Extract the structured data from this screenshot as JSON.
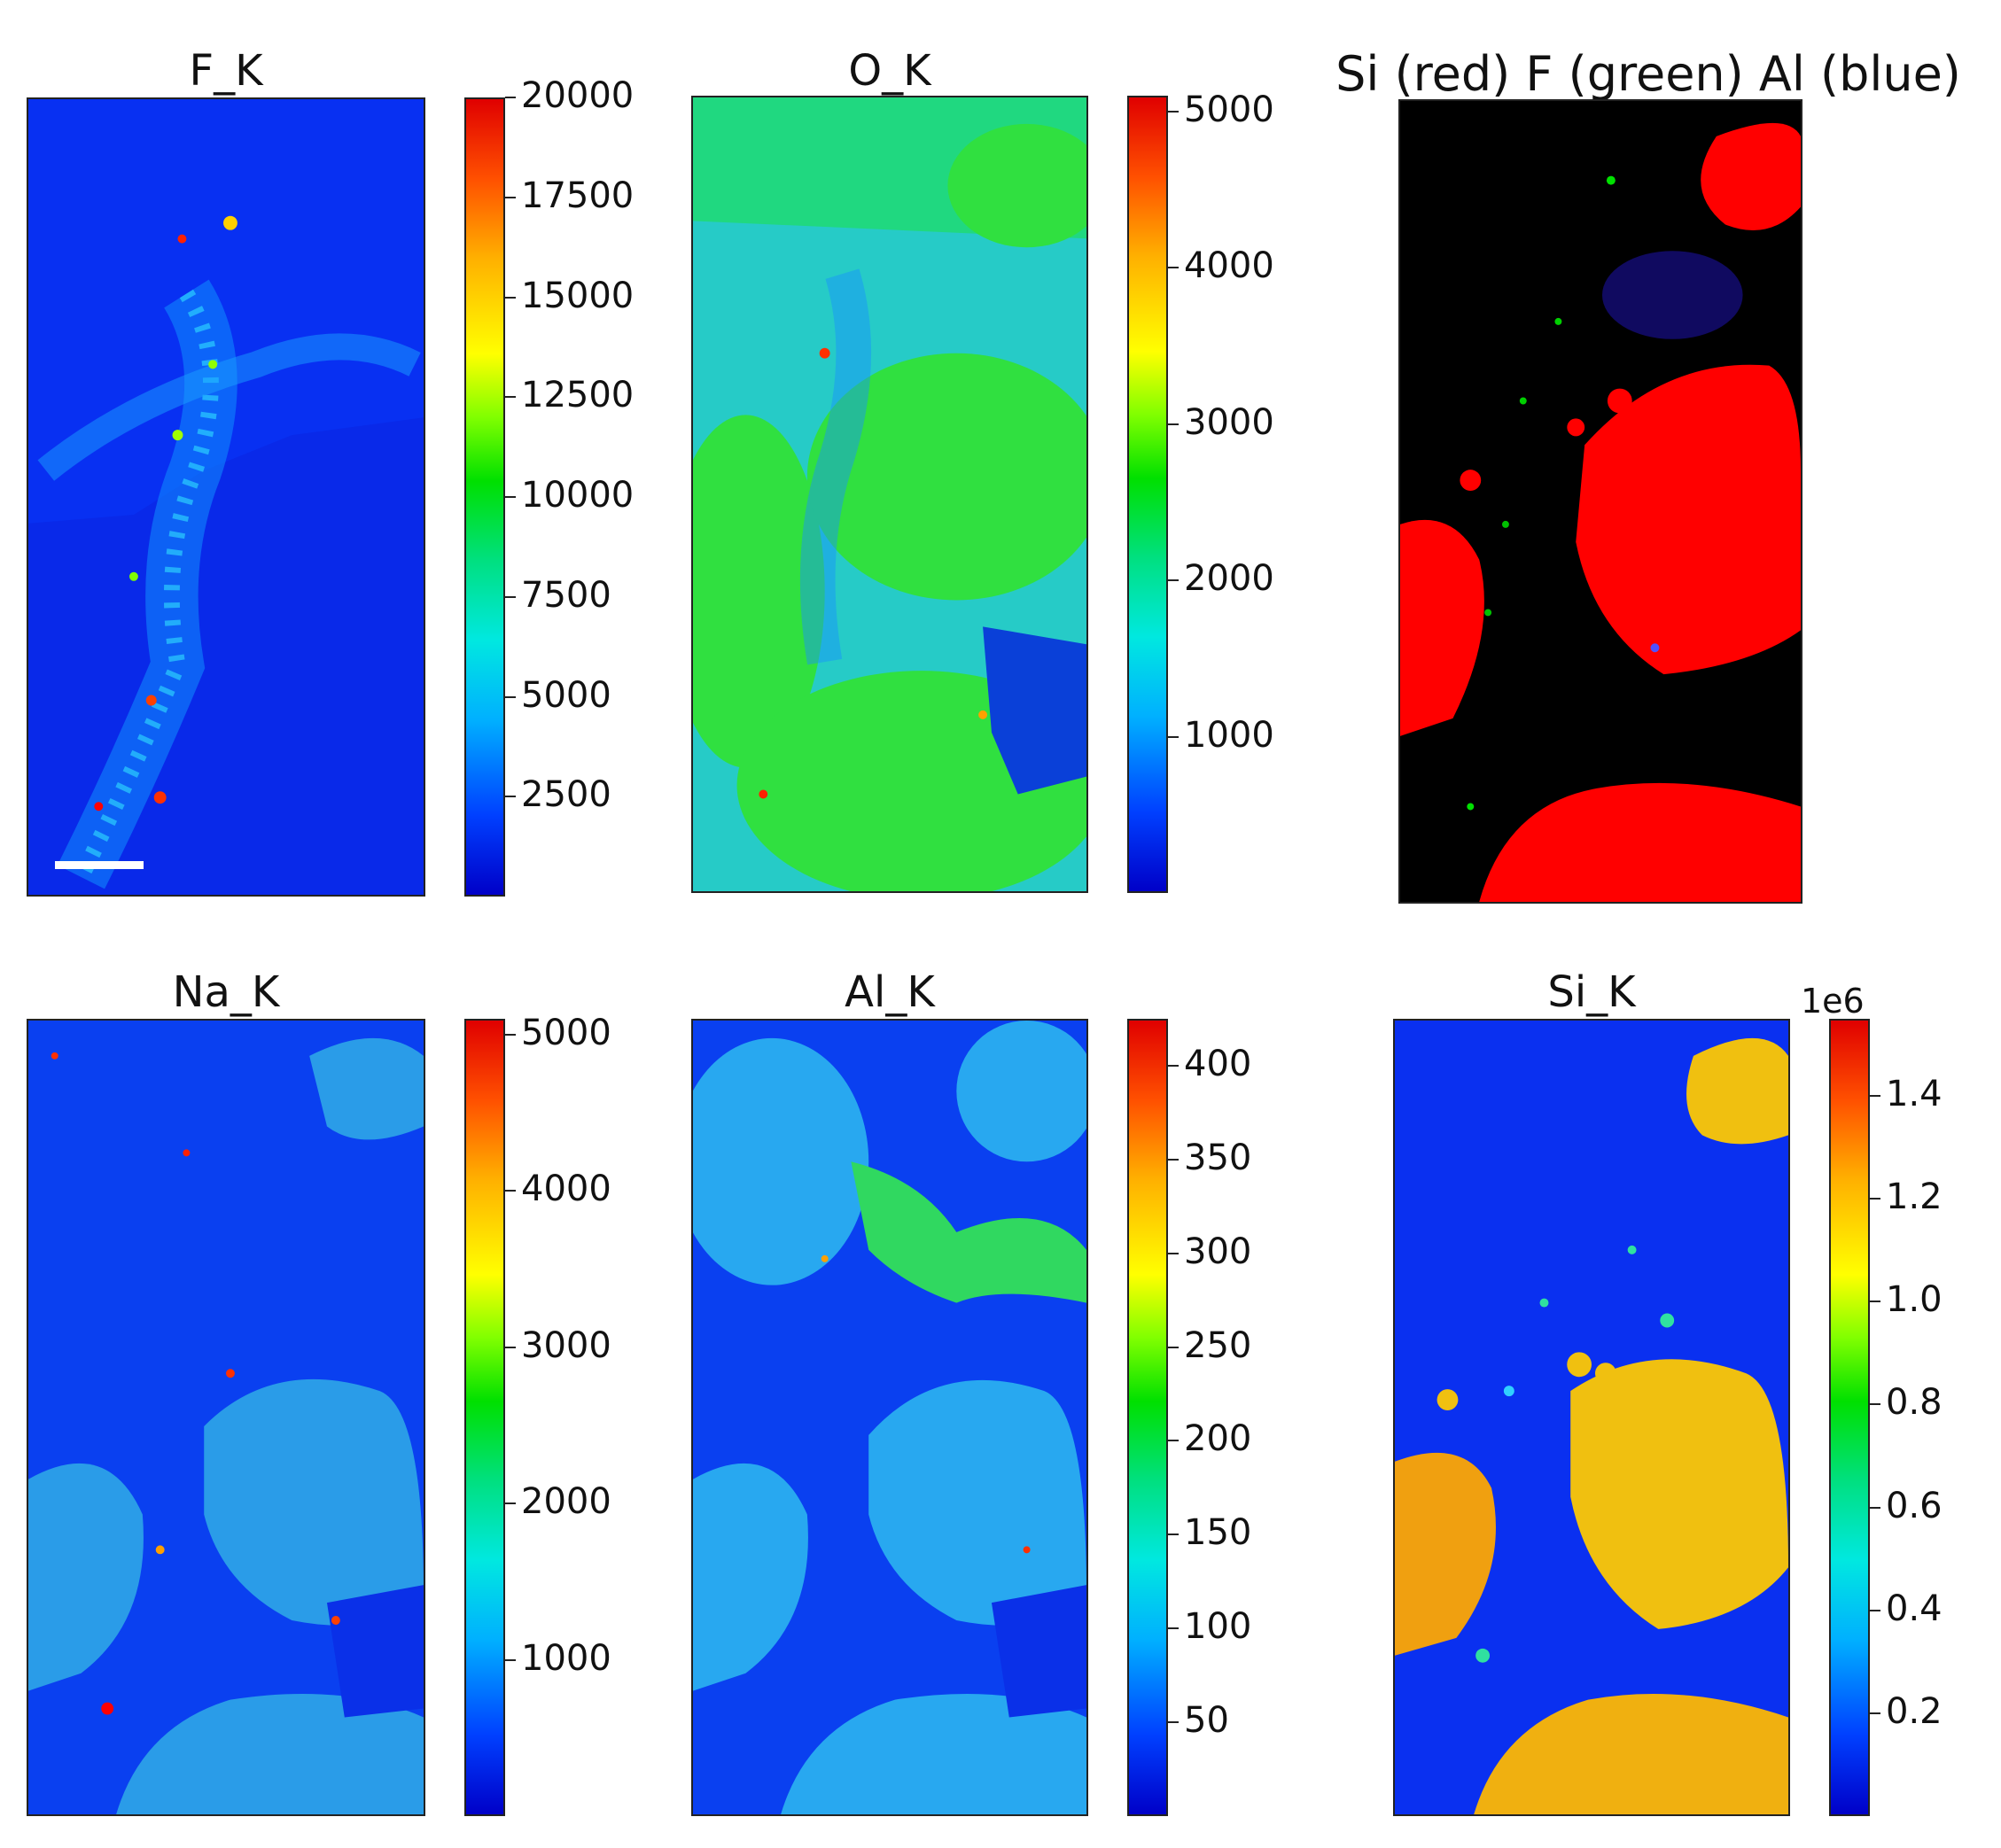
{
  "chart_data": [
    {
      "type": "heatmap",
      "title": "F_K",
      "colormap": "jet",
      "colorbar_ticks": [
        2500,
        5000,
        7500,
        10000,
        12500,
        15000,
        17500,
        20000
      ],
      "colorbar_tick_labels": [
        "2500",
        "5000",
        "7500",
        "10000",
        "12500",
        "15000",
        "17500",
        "20000"
      ],
      "colorbar_range": [
        0,
        20000
      ],
      "scale_bar": true
    },
    {
      "type": "heatmap",
      "title": "O_K",
      "colormap": "jet",
      "colorbar_ticks": [
        1000,
        2000,
        3000,
        4000,
        5000
      ],
      "colorbar_tick_labels": [
        "1000",
        "2000",
        "3000",
        "4000",
        "5000"
      ],
      "colorbar_range": [
        0,
        5100
      ]
    },
    {
      "type": "heatmap",
      "title": "Si (red) F (green) Al (blue)",
      "colormap": "rgb-composite",
      "channels": [
        "Si",
        "F",
        "Al"
      ],
      "channel_colors": [
        "#ff0000",
        "#00ff00",
        "#0000ff"
      ]
    },
    {
      "type": "heatmap",
      "title": "Na_K",
      "colormap": "jet",
      "colorbar_ticks": [
        1000,
        2000,
        3000,
        4000,
        5000
      ],
      "colorbar_tick_labels": [
        "1000",
        "2000",
        "3000",
        "4000",
        "5000"
      ],
      "colorbar_range": [
        0,
        5100
      ]
    },
    {
      "type": "heatmap",
      "title": "Al_K",
      "colormap": "jet",
      "colorbar_ticks": [
        50,
        100,
        150,
        200,
        250,
        300,
        350,
        400
      ],
      "colorbar_tick_labels": [
        "50",
        "100",
        "150",
        "200",
        "250",
        "300",
        "350",
        "400"
      ],
      "colorbar_range": [
        0,
        425
      ]
    },
    {
      "type": "heatmap",
      "title": "Si_K",
      "colormap": "jet",
      "colorbar_ticks": [
        0.2,
        0.4,
        0.6,
        0.8,
        1.0,
        1.2,
        1.4
      ],
      "colorbar_tick_labels": [
        "0.2",
        "0.4",
        "0.6",
        "0.8",
        "1.0",
        "1.2",
        "1.4"
      ],
      "colorbar_range": [
        0,
        1.55
      ],
      "colorbar_offset": "1e6"
    }
  ]
}
